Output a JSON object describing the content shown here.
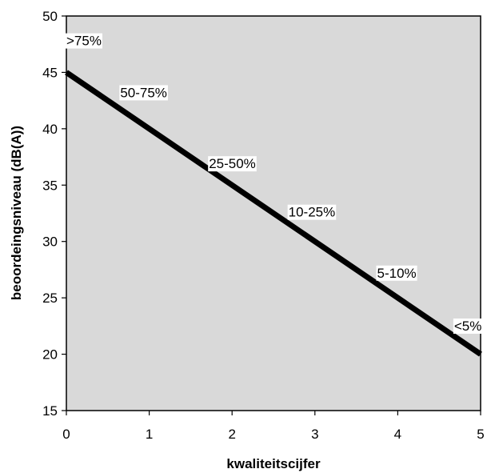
{
  "chart_data": {
    "type": "line",
    "title": "",
    "xlabel": "kwaliteitscijfer",
    "ylabel": "beoordeingsniveau (dB(A))",
    "xlim": [
      0,
      5
    ],
    "ylim": [
      15,
      50
    ],
    "x_ticks": [
      0,
      1,
      2,
      3,
      4,
      5
    ],
    "y_ticks": [
      15,
      20,
      25,
      30,
      35,
      40,
      45,
      50
    ],
    "grid": false,
    "plot_background": "#d9d9d9",
    "line_color": "#000000",
    "series": [
      {
        "x": [
          0,
          5
        ],
        "y": [
          45,
          20
        ]
      }
    ],
    "annotations": [
      {
        "text": ">75%",
        "x": 0.0,
        "y": 47.4
      },
      {
        "text": "50-75%",
        "x": 0.65,
        "y": 42.8
      },
      {
        "text": "25-50%",
        "x": 1.72,
        "y": 36.5
      },
      {
        "text": "10-25%",
        "x": 2.68,
        "y": 32.2
      },
      {
        "text": "5-10%",
        "x": 3.75,
        "y": 26.8
      },
      {
        "text": "<5%",
        "x": 4.68,
        "y": 22.1
      }
    ]
  }
}
